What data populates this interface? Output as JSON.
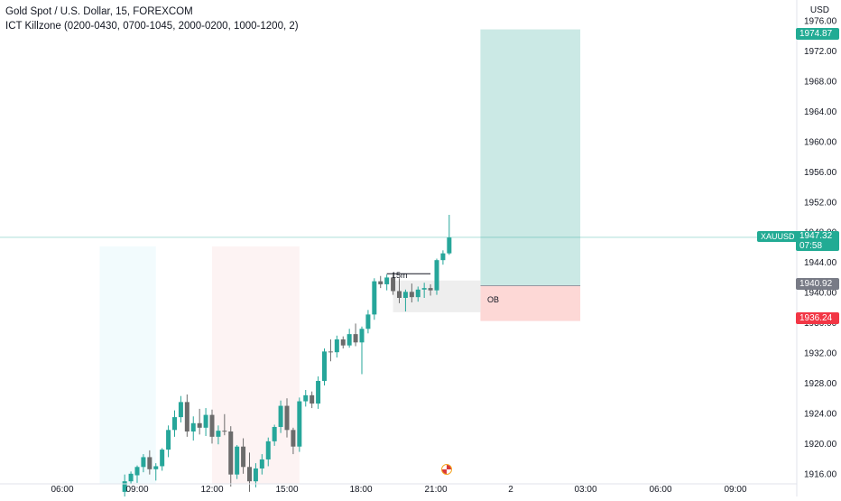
{
  "legend": {
    "title": "Gold Spot / U.S. Dollar, 15, FOREXCOM",
    "indicator": "ICT Killzone (0200-0430, 0700-1045, 2000-0200, 1000-1200, 2)"
  },
  "currency": "USD",
  "symbol_badge": "XAUUSD",
  "last_price": "1947.32",
  "countdown": "07:58",
  "target_price": "1974.87",
  "entry_price": "1940.92",
  "stop_price": "1936.24",
  "colors": {
    "bull": "#26a69a",
    "bear": "#6b6b6b",
    "profit_zone": "#cbe9e5",
    "loss_zone": "#fdd8d6",
    "target_tag": "#22ab94",
    "stop_tag": "#f23645",
    "entry_tag": "#787b86",
    "killzone_blue": "#f2fbfd",
    "killzone_red": "#fdf3f3",
    "ob_box": "#eeeeee"
  },
  "ob_label": "OB",
  "tf_label": "15m",
  "chart_data": {
    "type": "candlestick",
    "y_ticks": [
      1916.0,
      1920.0,
      1924.0,
      1928.0,
      1932.0,
      1936.0,
      1940.0,
      1944.0,
      1948.0,
      1952.0,
      1956.0,
      1960.0,
      1964.0,
      1968.0,
      1972.0,
      1976.0
    ],
    "ylim": [
      1914.4,
      1976.3
    ],
    "x_tick_labels": [
      "06:00",
      "09:00",
      "12:00",
      "15:00",
      "18:00",
      "21:00",
      "2",
      "03:00",
      "06:00",
      "09:00"
    ],
    "candles": [
      {
        "t": "08:30",
        "o": 1913.6,
        "h": 1915.9,
        "l": 1912.8,
        "c": 1915.0
      },
      {
        "t": "08:45",
        "o": 1915.0,
        "h": 1916.3,
        "l": 1914.6,
        "c": 1916.0
      },
      {
        "t": "09:00",
        "o": 1915.8,
        "h": 1917.1,
        "l": 1914.8,
        "c": 1916.9
      },
      {
        "t": "09:15",
        "o": 1916.9,
        "h": 1918.6,
        "l": 1916.2,
        "c": 1918.2
      },
      {
        "t": "09:30",
        "o": 1918.2,
        "h": 1919.1,
        "l": 1915.9,
        "c": 1916.6
      },
      {
        "t": "09:45",
        "o": 1916.6,
        "h": 1917.4,
        "l": 1915.1,
        "c": 1917.0
      },
      {
        "t": "10:00",
        "o": 1917.0,
        "h": 1919.4,
        "l": 1916.4,
        "c": 1919.2
      },
      {
        "t": "10:15",
        "o": 1919.2,
        "h": 1922.4,
        "l": 1918.2,
        "c": 1921.8
      },
      {
        "t": "10:30",
        "o": 1921.8,
        "h": 1924.4,
        "l": 1920.9,
        "c": 1923.5
      },
      {
        "t": "10:45",
        "o": 1923.5,
        "h": 1926.3,
        "l": 1922.8,
        "c": 1925.5
      },
      {
        "t": "11:00",
        "o": 1925.5,
        "h": 1926.5,
        "l": 1920.9,
        "c": 1921.6
      },
      {
        "t": "11:15",
        "o": 1921.6,
        "h": 1923.6,
        "l": 1920.4,
        "c": 1922.7
      },
      {
        "t": "11:30",
        "o": 1922.7,
        "h": 1924.6,
        "l": 1921.2,
        "c": 1922.1
      },
      {
        "t": "11:45",
        "o": 1922.1,
        "h": 1924.7,
        "l": 1921.0,
        "c": 1923.8
      },
      {
        "t": "12:00",
        "o": 1923.8,
        "h": 1924.5,
        "l": 1920.0,
        "c": 1920.9
      },
      {
        "t": "12:15",
        "o": 1920.9,
        "h": 1922.4,
        "l": 1919.9,
        "c": 1921.7
      },
      {
        "t": "12:30",
        "o": 1921.7,
        "h": 1923.9,
        "l": 1921.1,
        "c": 1921.6
      },
      {
        "t": "12:45",
        "o": 1921.6,
        "h": 1922.3,
        "l": 1914.3,
        "c": 1915.9
      },
      {
        "t": "13:00",
        "o": 1915.9,
        "h": 1919.8,
        "l": 1915.3,
        "c": 1919.6
      },
      {
        "t": "13:15",
        "o": 1919.6,
        "h": 1920.7,
        "l": 1916.0,
        "c": 1916.9
      },
      {
        "t": "13:30",
        "o": 1916.9,
        "h": 1918.8,
        "l": 1913.6,
        "c": 1915.0
      },
      {
        "t": "13:45",
        "o": 1915.0,
        "h": 1917.4,
        "l": 1914.2,
        "c": 1916.7
      },
      {
        "t": "14:00",
        "o": 1916.7,
        "h": 1918.6,
        "l": 1915.9,
        "c": 1917.9
      },
      {
        "t": "14:15",
        "o": 1917.9,
        "h": 1920.8,
        "l": 1917.0,
        "c": 1920.3
      },
      {
        "t": "14:30",
        "o": 1920.3,
        "h": 1922.5,
        "l": 1919.7,
        "c": 1922.2
      },
      {
        "t": "14:45",
        "o": 1922.2,
        "h": 1925.7,
        "l": 1921.4,
        "c": 1925.0
      },
      {
        "t": "15:00",
        "o": 1925.0,
        "h": 1926.0,
        "l": 1920.8,
        "c": 1921.8
      },
      {
        "t": "15:15",
        "o": 1921.8,
        "h": 1922.1,
        "l": 1918.6,
        "c": 1919.6
      },
      {
        "t": "15:30",
        "o": 1919.6,
        "h": 1926.1,
        "l": 1918.9,
        "c": 1925.6
      },
      {
        "t": "15:45",
        "o": 1925.6,
        "h": 1927.1,
        "l": 1924.9,
        "c": 1926.4
      },
      {
        "t": "16:00",
        "o": 1926.4,
        "h": 1926.9,
        "l": 1924.7,
        "c": 1925.3
      },
      {
        "t": "16:15",
        "o": 1925.3,
        "h": 1928.9,
        "l": 1924.6,
        "c": 1928.3
      },
      {
        "t": "16:30",
        "o": 1928.3,
        "h": 1932.6,
        "l": 1927.7,
        "c": 1932.2
      },
      {
        "t": "16:45",
        "o": 1932.2,
        "h": 1933.8,
        "l": 1930.9,
        "c": 1932.1
      },
      {
        "t": "17:00",
        "o": 1932.1,
        "h": 1934.3,
        "l": 1931.4,
        "c": 1933.8
      },
      {
        "t": "17:15",
        "o": 1933.8,
        "h": 1934.2,
        "l": 1932.6,
        "c": 1933.0
      },
      {
        "t": "17:30",
        "o": 1933.0,
        "h": 1935.2,
        "l": 1932.7,
        "c": 1934.5
      },
      {
        "t": "17:45",
        "o": 1934.5,
        "h": 1935.9,
        "l": 1932.9,
        "c": 1933.4
      },
      {
        "t": "18:00",
        "o": 1933.4,
        "h": 1935.5,
        "l": 1929.2,
        "c": 1935.2
      },
      {
        "t": "18:15",
        "o": 1935.2,
        "h": 1937.7,
        "l": 1934.6,
        "c": 1937.1
      },
      {
        "t": "18:30",
        "o": 1937.1,
        "h": 1941.9,
        "l": 1936.4,
        "c": 1941.5
      },
      {
        "t": "18:45",
        "o": 1941.5,
        "h": 1942.2,
        "l": 1940.6,
        "c": 1941.1
      },
      {
        "t": "19:00",
        "o": 1941.1,
        "h": 1942.4,
        "l": 1940.3,
        "c": 1942.0
      },
      {
        "t": "19:15",
        "o": 1942.0,
        "h": 1942.6,
        "l": 1939.7,
        "c": 1940.2
      },
      {
        "t": "19:30",
        "o": 1940.2,
        "h": 1941.9,
        "l": 1938.6,
        "c": 1939.3
      },
      {
        "t": "19:45",
        "o": 1939.3,
        "h": 1940.4,
        "l": 1937.5,
        "c": 1940.1
      },
      {
        "t": "20:00",
        "o": 1940.1,
        "h": 1941.2,
        "l": 1938.7,
        "c": 1939.4
      },
      {
        "t": "20:15",
        "o": 1939.4,
        "h": 1940.8,
        "l": 1938.8,
        "c": 1940.4
      },
      {
        "t": "20:30",
        "o": 1940.4,
        "h": 1941.3,
        "l": 1939.3,
        "c": 1940.6
      },
      {
        "t": "20:45",
        "o": 1940.6,
        "h": 1941.1,
        "l": 1939.6,
        "c": 1940.3
      },
      {
        "t": "21:00",
        "o": 1940.3,
        "h": 1944.5,
        "l": 1939.7,
        "c": 1944.3
      },
      {
        "t": "21:15",
        "o": 1944.3,
        "h": 1945.6,
        "l": 1943.7,
        "c": 1945.2
      },
      {
        "t": "21:30",
        "o": 1945.2,
        "h": 1950.3,
        "l": 1945.0,
        "c": 1947.3
      }
    ],
    "killzones": [
      {
        "from": "07:30",
        "to": "09:45",
        "color": "#f2fbfd"
      },
      {
        "from": "12:00",
        "to": "15:30",
        "color": "#fdf3f3"
      }
    ],
    "order_block": {
      "from": "19:15",
      "to": "22:45",
      "top": 1941.6,
      "bottom": 1937.4
    },
    "tf_line": {
      "from": "19:00",
      "to": "20:45",
      "price": 1942.5
    },
    "position": {
      "from": "22:45",
      "to": "02:45",
      "target": 1974.87,
      "entry": 1940.92,
      "stop": 1936.24
    }
  }
}
